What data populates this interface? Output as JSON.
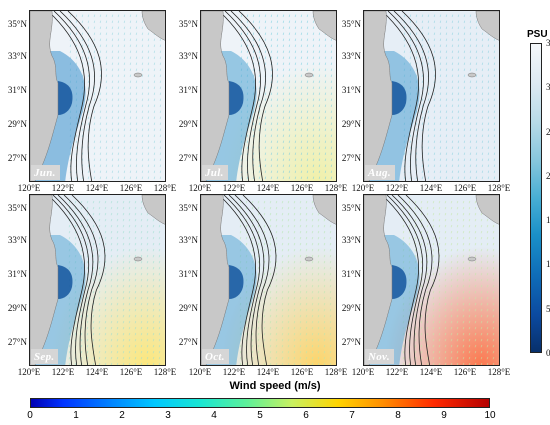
{
  "figure": {
    "panels": [
      {
        "month": "Jun.",
        "coast_water": "#3a8fcc",
        "offshore": "#eef3f8",
        "wind_tint": "#9ad7e0",
        "wind_warm": null
      },
      {
        "month": "Jul.",
        "coast_water": "#4fa3d2",
        "offshore": "#eef3f8",
        "wind_tint": "#7fd0e0",
        "wind_warm": "#f0f0a0"
      },
      {
        "month": "Aug.",
        "coast_water": "#4da1d1",
        "offshore": "#e6eef6",
        "wind_tint": "#8fd4e0",
        "wind_warm": null
      },
      {
        "month": "Sep.",
        "coast_water": "#5aa8d4",
        "offshore": "#e4edf5",
        "wind_tint": "#9edfd0",
        "wind_warm": "#ffe66e"
      },
      {
        "month": "Oct.",
        "coast_water": "#5aa8d4",
        "offshore": "#e4edf5",
        "wind_tint": "#b7e7b0",
        "wind_warm": "#ffd25a"
      },
      {
        "month": "Nov.",
        "coast_water": "#5aa8d4",
        "offshore": "#e4edf5",
        "wind_tint": "#c4e8a8",
        "wind_warm": "#ff6a3a"
      }
    ],
    "lat_labels": [
      "35°N",
      "33°N",
      "31°N",
      "29°N",
      "27°N"
    ],
    "lon_labels": [
      "120°E",
      "122°E",
      "124°E",
      "126°E",
      "128°E"
    ],
    "salinity_colorbar": {
      "title": "PSU",
      "ticks": [
        "35",
        "30",
        "25",
        "20",
        "15",
        "10",
        "5",
        "0"
      ],
      "range": [
        0,
        35
      ]
    },
    "wind_colorbar": {
      "title": "Wind speed (m/s)",
      "ticks": [
        "0",
        "1",
        "2",
        "3",
        "4",
        "5",
        "6",
        "7",
        "8",
        "9",
        "10"
      ],
      "range": [
        0,
        10
      ]
    },
    "land_color": "#c8c8c8",
    "contour_color": "#222222"
  }
}
